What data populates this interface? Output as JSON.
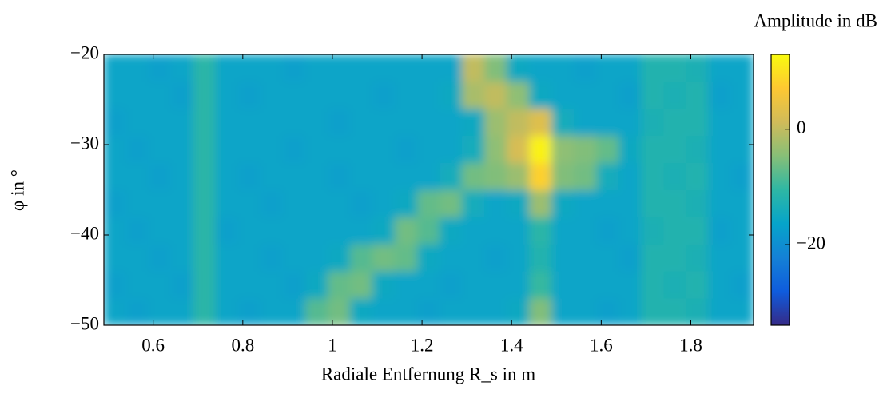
{
  "chart_data": {
    "type": "heatmap",
    "xlabel": "Radiale Entfernung R_s in m",
    "ylabel": "φ in °",
    "colorbar_label": "Amplitude in dB",
    "x_bins": [
      0.49,
      0.54,
      0.59,
      0.64,
      0.69,
      0.74,
      0.79,
      0.84,
      0.89,
      0.94,
      0.99,
      1.04,
      1.09,
      1.14,
      1.19,
      1.24,
      1.29,
      1.34,
      1.39,
      1.44,
      1.49,
      1.54,
      1.59,
      1.64,
      1.69,
      1.74,
      1.79,
      1.84,
      1.89,
      1.94
    ],
    "y_bins": [
      -50,
      -47,
      -44,
      -41,
      -38,
      -35,
      -32,
      -29,
      -26,
      -23,
      -20
    ],
    "values": [
      [
        -16,
        -17,
        -16,
        -16,
        -11,
        -16,
        -17,
        -16,
        -16,
        -8,
        -6,
        -15,
        -16,
        -16,
        -17,
        -16,
        -16,
        -16,
        -15,
        -5,
        -16,
        -16,
        -17,
        -16,
        -12,
        -12,
        -13,
        -16,
        -16
      ],
      [
        -17,
        -16,
        -16,
        -17,
        -11,
        -16,
        -16,
        -16,
        -17,
        -15,
        -7,
        -6,
        -15,
        -16,
        -16,
        -17,
        -16,
        -16,
        -16,
        -10,
        -16,
        -16,
        -16,
        -16,
        -12,
        -13,
        -12,
        -16,
        -17
      ],
      [
        -16,
        -16,
        -17,
        -16,
        -11,
        -16,
        -16,
        -17,
        -16,
        -16,
        -15,
        -8,
        -6,
        -7,
        -15,
        -16,
        -16,
        -17,
        -16,
        -12,
        -16,
        -16,
        -16,
        -17,
        -12,
        -12,
        -13,
        -16,
        -16
      ],
      [
        -16,
        -17,
        -16,
        -16,
        -11,
        -17,
        -16,
        -16,
        -16,
        -16,
        -16,
        -16,
        -15,
        -6,
        -8,
        -15,
        -16,
        -16,
        -16,
        -11,
        -16,
        -16,
        -17,
        -16,
        -13,
        -12,
        -12,
        -17,
        -16
      ],
      [
        -17,
        -16,
        -16,
        -16,
        -11,
        -16,
        -16,
        -17,
        -16,
        -16,
        -16,
        -17,
        -16,
        -15,
        -7,
        -6,
        -14,
        -16,
        -15,
        -3,
        -15,
        -16,
        -16,
        -16,
        -12,
        -12,
        -13,
        -16,
        -16
      ],
      [
        -16,
        -16,
        -17,
        -16,
        -11,
        -16,
        -17,
        -16,
        -16,
        -16,
        -17,
        -16,
        -16,
        -16,
        -16,
        -14,
        -6,
        -5,
        -3,
        8,
        -5,
        -6,
        -14,
        -16,
        -12,
        -13,
        -12,
        -16,
        -17
      ],
      [
        -16,
        -17,
        -16,
        -16,
        -11,
        -16,
        -16,
        -16,
        -17,
        -16,
        -16,
        -16,
        -16,
        -17,
        -16,
        -16,
        -14,
        -4,
        2,
        12,
        -4,
        -5,
        -7,
        -15,
        -12,
        -12,
        -13,
        -16,
        -16
      ],
      [
        -17,
        -16,
        -16,
        -16,
        -11,
        -16,
        -16,
        -16,
        -16,
        -16,
        -17,
        -16,
        -16,
        -16,
        -16,
        -16,
        -15,
        -3,
        0,
        3,
        -14,
        -16,
        -16,
        -16,
        -13,
        -12,
        -12,
        -16,
        -16
      ],
      [
        -16,
        -16,
        -16,
        -17,
        -11,
        -16,
        -17,
        -16,
        -16,
        -16,
        -16,
        -16,
        -17,
        -16,
        -16,
        -15,
        -2,
        0,
        -4,
        -15,
        -16,
        -16,
        -16,
        -17,
        -12,
        -13,
        -12,
        -17,
        -16
      ],
      [
        -16,
        -16,
        -17,
        -16,
        -11,
        -16,
        -16,
        -16,
        -17,
        -16,
        -16,
        -16,
        -16,
        -16,
        -16,
        -16,
        0,
        -5,
        -15,
        -16,
        -16,
        -17,
        -16,
        -16,
        -12,
        -12,
        -13,
        -16,
        -16
      ]
    ],
    "xlim": [
      0.49,
      1.94
    ],
    "ylim": [
      -50,
      -20
    ],
    "xticks": [
      0.6,
      0.8,
      1,
      1.2,
      1.4,
      1.6,
      1.8
    ],
    "yticks": [
      {
        "value": -50,
        "label": "−50"
      },
      {
        "value": -40,
        "label": "−40"
      },
      {
        "value": -30,
        "label": "−30"
      },
      {
        "value": -20,
        "label": "−20"
      }
    ],
    "clim": [
      -34,
      13
    ],
    "cticks": [
      {
        "value": -20,
        "label": "−20"
      },
      0
    ],
    "colormap": [
      "#352a87",
      "#0f5cdd",
      "#1481d6",
      "#06a4ca",
      "#2eb7a4",
      "#87bf77",
      "#d1bb59",
      "#fec832",
      "#f9fb0e"
    ]
  }
}
